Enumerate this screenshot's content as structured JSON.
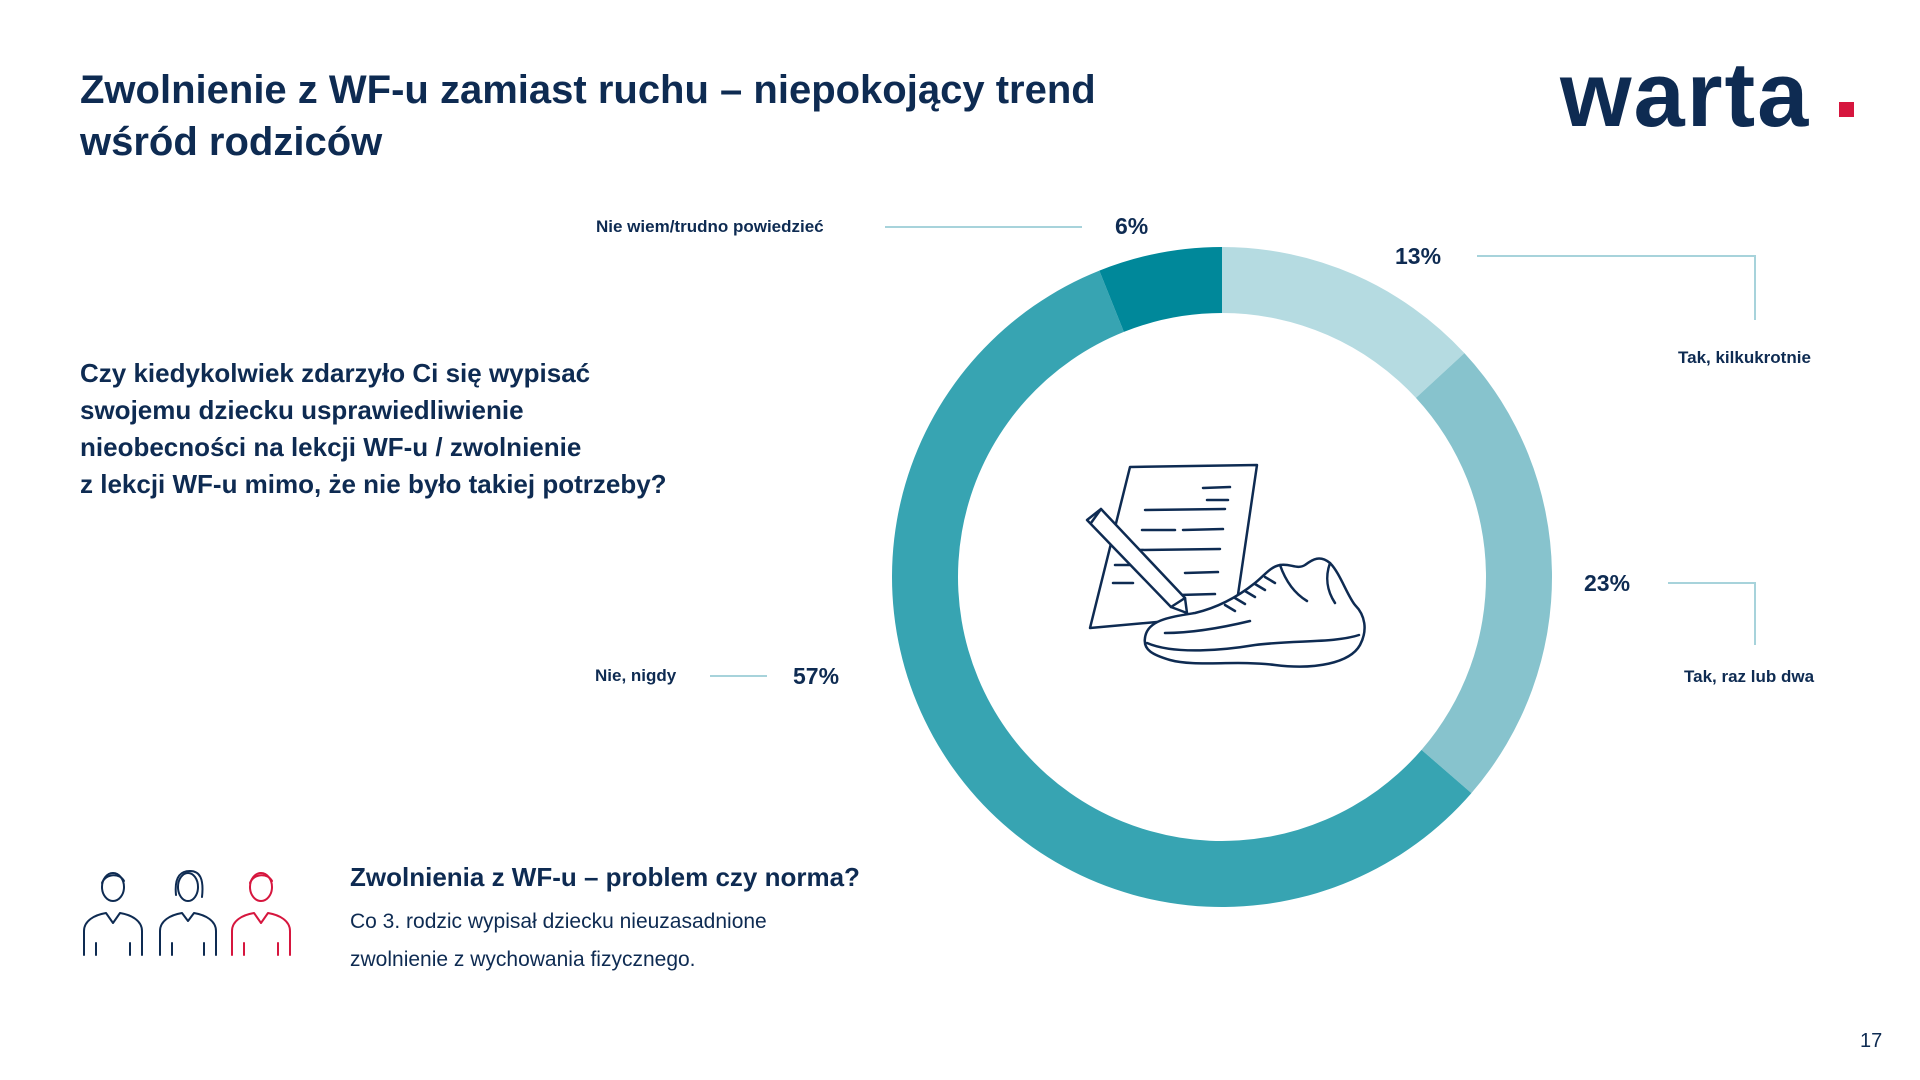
{
  "title": {
    "line1": "Zwolnienie z WF-u zamiast ruchu – niepokojący trend",
    "line2": "wśród rodziców"
  },
  "logo": {
    "text": "warta",
    "dot_color": "#d6163e"
  },
  "question": {
    "line1": "Czy kiedykolwiek zdarzyło Ci się wypisać",
    "line2": "swojemu dziecku usprawiedliwienie",
    "line3": "nieobecności na lekcji WF-u / zwolnienie",
    "line4": "z lekcji WF-u mimo, że nie było takiej potrzeby?"
  },
  "chart_data": {
    "type": "pie",
    "variant": "donut",
    "slices": [
      {
        "label": "Tak, kilkukrotnie",
        "value": 13,
        "value_label": "13%",
        "color": "#b5dbe1"
      },
      {
        "label": "Tak, raz lub dwa",
        "value": 23,
        "value_label": "23%",
        "color": "#87c3cd"
      },
      {
        "label": "Nie, nigdy",
        "value": 57,
        "value_label": "57%",
        "color": "#37a4b2"
      },
      {
        "label": "Nie wiem/trudno powiedzieć",
        "value": 6,
        "value_label": "6%",
        "color": "#00889a"
      }
    ],
    "start": "top",
    "direction": "clockwise"
  },
  "bottom": {
    "title": "Zwolnienia z WF-u – problem czy norma?",
    "text_line1": "Co 3. rodzic wypisał dziecku nieuzasadnione",
    "text_line2": "zwolnienie z wychowania fizycznego."
  },
  "icons": [
    "document-with-pen-and-sneaker-icon",
    "people-icon"
  ],
  "colors": {
    "text": "#0e2b52",
    "accent": "#d6163e",
    "leader_line": "#a7d3db"
  },
  "page_number": "17"
}
